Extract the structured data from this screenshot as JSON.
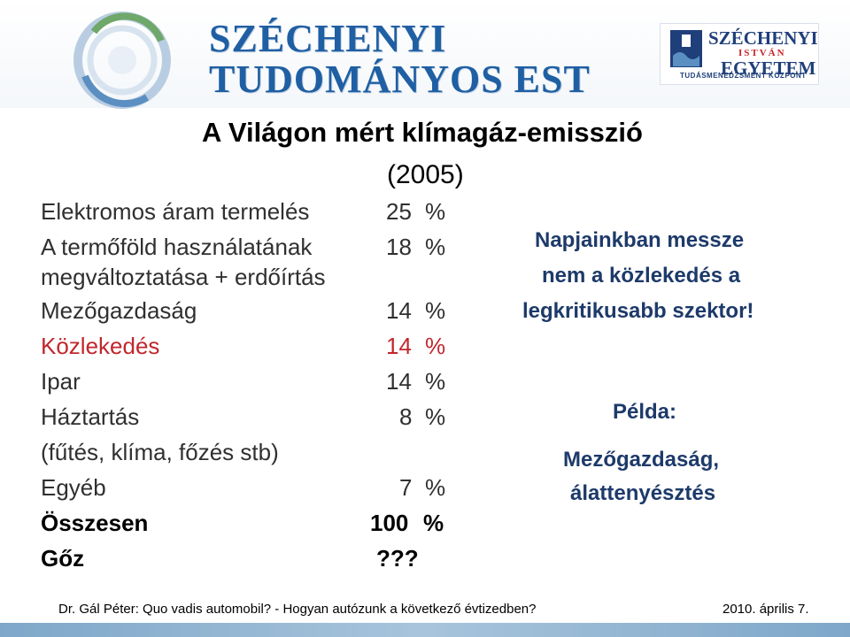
{
  "header": {
    "brand_line1": "SZÉCHENYI",
    "brand_line2": "TUDOMÁNYOS EST",
    "uni_line1": "SZÉCHENYI",
    "uni_line2": "ISTVÁN",
    "uni_line3": "EGYETEM",
    "uni_sub": "TUDÁSMENEDZSMENT KÖZPONT"
  },
  "title": "A Világon mért klímagáz-emisszió",
  "year": "(2005)",
  "rows": [
    {
      "label": "Elektromos áram termelés",
      "value": "25",
      "unit": "%"
    },
    {
      "label": "A termőföld használatának",
      "value": "18",
      "unit": "%"
    },
    {
      "label": "megváltoztatása + erdőírtás",
      "value": "",
      "unit": ""
    },
    {
      "label": "Mezőgazdaság",
      "value": "14",
      "unit": "%"
    },
    {
      "label": "Közlekedés",
      "value": "14",
      "unit": "%"
    },
    {
      "label": "Ipar",
      "value": "14",
      "unit": "%"
    },
    {
      "label": "Háztartás",
      "value": "8",
      "unit": "%"
    },
    {
      "label": "(fűtés, klíma, főzés stb)",
      "value": "",
      "unit": ""
    },
    {
      "label": "Egyéb",
      "value": "7",
      "unit": "%"
    },
    {
      "label": "Összesen",
      "value": "100",
      "unit": "%"
    },
    {
      "label": "Gőz",
      "value": "???",
      "unit": ""
    }
  ],
  "note": {
    "line1": "Napjainkban messze",
    "line2": "nem a közlekedés a",
    "line3": "legkritikusabb szektor!"
  },
  "example": {
    "heading": "Példa:",
    "line1": "Mezőgazdaság,",
    "line2": "álattenyésztés"
  },
  "footer": {
    "author": "Dr. Gál Péter: Quo vadis automobil? - Hogyan autózunk a következő évtizedben?",
    "date": "2010. április 7."
  },
  "colors": {
    "highlight_red": "#c0272d",
    "note_blue": "#1d3a6a",
    "brand_blue": "#1f5fa3"
  }
}
